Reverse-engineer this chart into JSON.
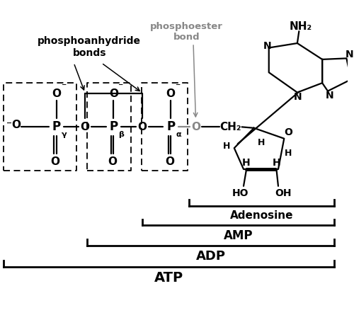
{
  "bg_color": "#ffffff",
  "text_color": "#000000",
  "gray_color": "#888888",
  "figsize": [
    5.0,
    4.69
  ],
  "dpi": 100,
  "phosphoester_label": "phosphoester",
  "phosphoester_label2": "bond",
  "phosphoanhydride_label": "phosphoanhydride",
  "phosphoanhydride_label2": "bonds",
  "adenosine_label": "Adenosine",
  "amp_label": "AMP",
  "adp_label": "ADP",
  "atp_label": "ATP",
  "P_gamma_sub": "γ",
  "P_beta_sub": "β",
  "P_alpha_sub": "α",
  "NH2_label": "NH₂",
  "CH2_label": "CH₂",
  "HO_label": "HO",
  "OH_label": "OH"
}
